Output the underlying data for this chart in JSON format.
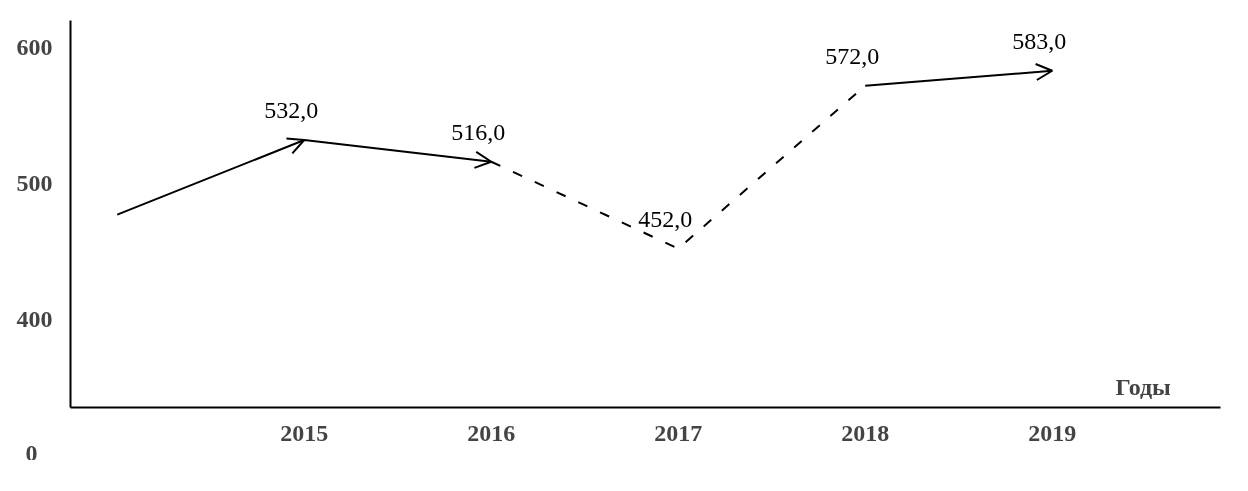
{
  "chart_data": {
    "type": "line",
    "xlabel": "Годы",
    "xlim": [
      2013.75,
      2019.9
    ],
    "xticks": [
      2015,
      2016,
      2017,
      2018,
      2019
    ],
    "ylim": [
      335,
      620
    ],
    "yticks": [
      400,
      500,
      600
    ],
    "annotations": [
      "0"
    ],
    "grid": false,
    "marker": "none",
    "series": [
      {
        "color": "#000000",
        "line_style": "solid",
        "x": [
          2014,
          2015,
          2016
        ],
        "values": [
          477,
          532,
          516
        ],
        "value_labels": [
          null,
          "532,0",
          "516,0"
        ]
      },
      {
        "color": "#000000",
        "line_style": "dashed",
        "x": [
          2016,
          2017,
          2018
        ],
        "values": [
          516,
          452,
          572
        ],
        "value_labels": [
          null,
          "452,0",
          "572,0"
        ]
      },
      {
        "color": "#000000",
        "line_style": "solid",
        "x": [
          2018,
          2019
        ],
        "values": [
          572,
          583
        ],
        "value_labels": [
          null,
          "583,0"
        ]
      }
    ]
  }
}
